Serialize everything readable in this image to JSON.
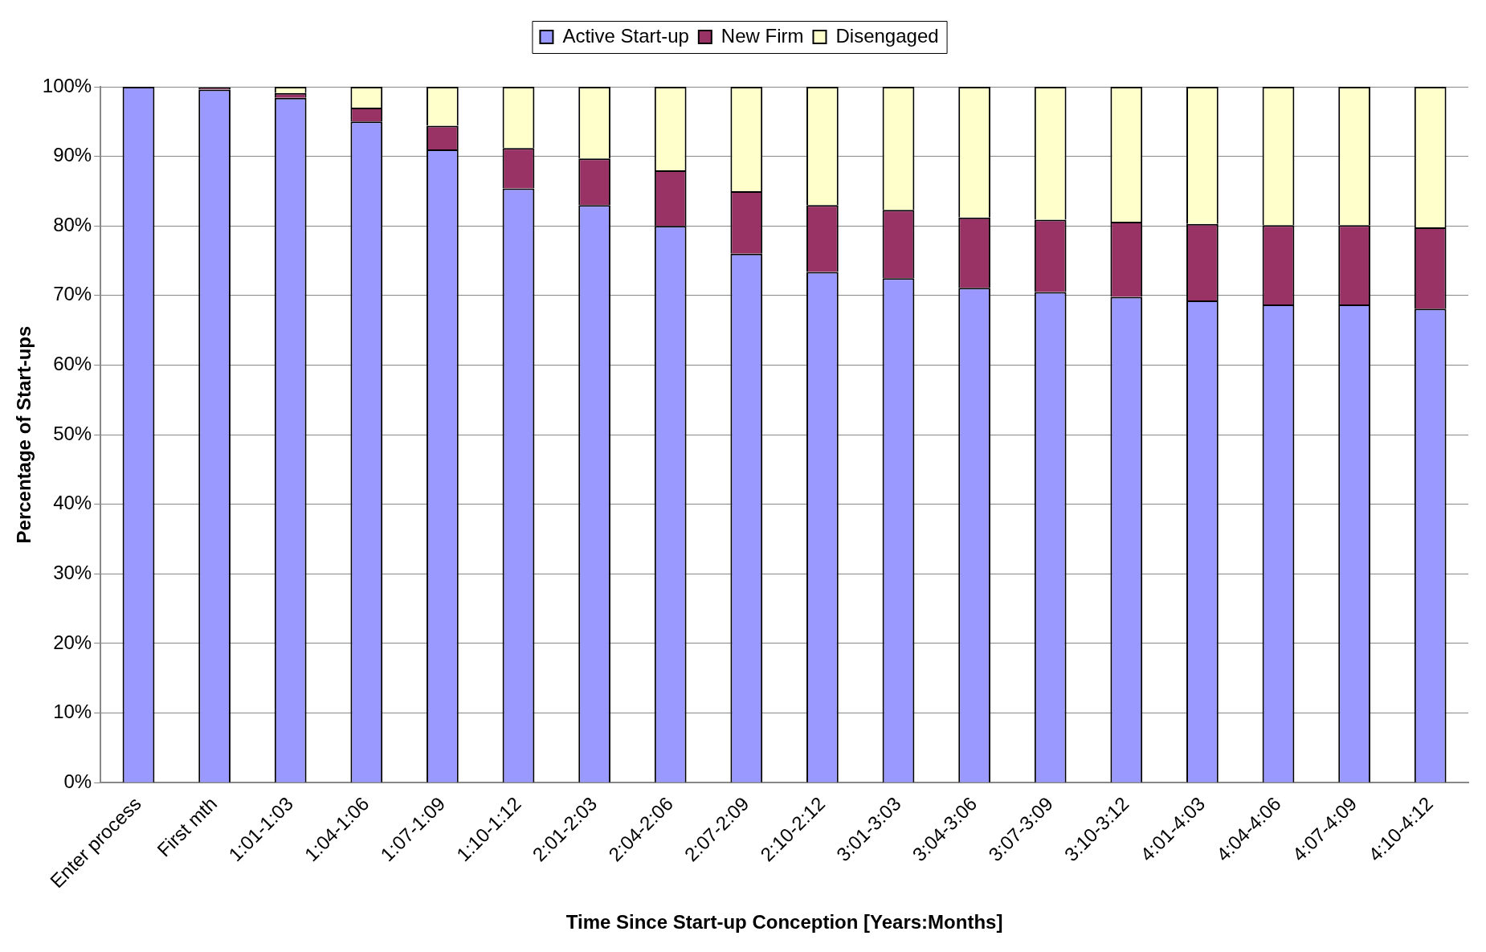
{
  "chart_data": {
    "type": "bar",
    "stacked": true,
    "xlabel": "Time Since Start-up Conception [Years:Months]",
    "ylabel": "Percentage of Start-ups",
    "categories": [
      "Enter process",
      "First mth",
      "1:01-1:03",
      "1:04-1:06",
      "1:07-1:09",
      "1:10-1:12",
      "2:01-2:03",
      "2:04-2:06",
      "2:07-2:09",
      "2:10-2:12",
      "3:01-3:03",
      "3:04-3:06",
      "3:07-3:09",
      "3:10-3:12",
      "4:01-4:03",
      "4:04-4:06",
      "4:07-4:09",
      "4:10-4:12"
    ],
    "series": [
      {
        "name": "Active Start-up",
        "color": "#9999ff",
        "values": [
          100,
          99.6,
          98.4,
          95,
          91,
          85.4,
          83,
          80,
          76,
          73.4,
          72.5,
          71.1,
          70.5,
          69.8,
          69.3,
          68.7,
          68.7,
          68.1
        ]
      },
      {
        "name": "New Firm",
        "color": "#993366",
        "values": [
          0,
          0.3,
          0.7,
          2,
          3.4,
          5.8,
          6.7,
          8,
          9,
          9.6,
          9.8,
          10.1,
          10.4,
          10.8,
          11,
          11.4,
          11.4,
          11.7
        ]
      },
      {
        "name": "Disengaged",
        "color": "#ffffcc",
        "values": [
          0,
          null,
          0.9,
          3,
          5.6,
          8.8,
          10.3,
          12,
          15,
          17,
          17.7,
          18.8,
          19.1,
          19.4,
          19.7,
          19.9,
          19.9,
          20.2
        ]
      }
    ],
    "ylim": [
      0,
      100
    ],
    "yticks": [
      {
        "value": 0,
        "label": "0%"
      },
      {
        "value": 10,
        "label": "10%"
      },
      {
        "value": 20,
        "label": "20%"
      },
      {
        "value": 30,
        "label": "30%"
      },
      {
        "value": 40,
        "label": "40%"
      },
      {
        "value": 50,
        "label": "50%"
      },
      {
        "value": 60,
        "label": "60%"
      },
      {
        "value": 70,
        "label": "70%"
      },
      {
        "value": 80,
        "label": "80%"
      },
      {
        "value": 90,
        "label": "90%"
      },
      {
        "value": 100,
        "label": "100%"
      }
    ],
    "grid": "y",
    "legend": "top"
  }
}
